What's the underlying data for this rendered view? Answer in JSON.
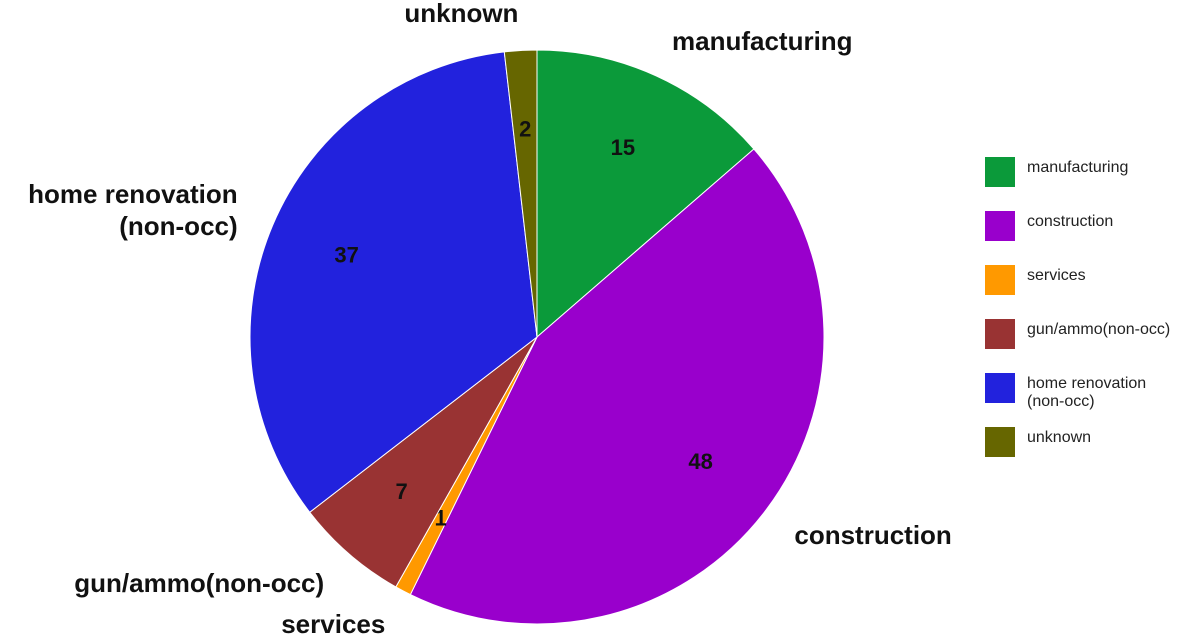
{
  "chart_data": {
    "type": "pie",
    "categories": [
      "manufacturing",
      "construction",
      "services",
      "gun/ammo(non-occ)",
      "home renovation (non-occ)",
      "unknown"
    ],
    "values": [
      15,
      48,
      1,
      7,
      37,
      2
    ],
    "colors": [
      "#0b9a3a",
      "#9900cc",
      "#ff9900",
      "#993333",
      "#2222dd",
      "#666600"
    ],
    "legend": "right"
  }
}
